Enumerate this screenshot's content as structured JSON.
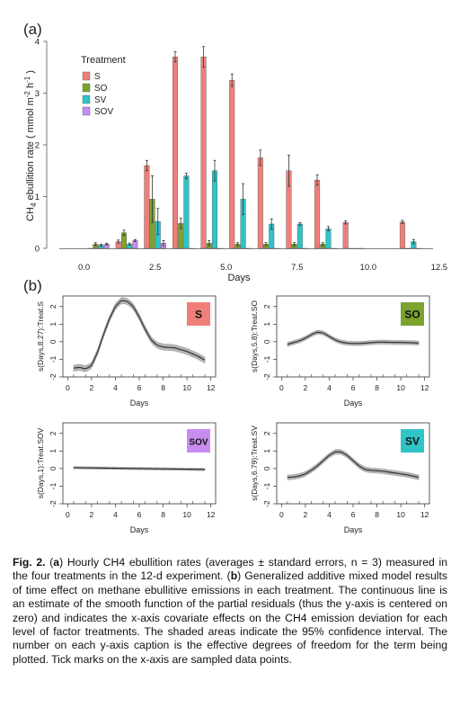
{
  "panel_a": {
    "label": "(a)",
    "legend_title": "Treatment",
    "ylabel": "CH4 ebullition rate ( mmol m-2 h-1 )",
    "xlabel": "Days",
    "xticks": [
      "0.0",
      "2.5",
      "5.0",
      "7.5",
      "10.0",
      "12.5"
    ],
    "yticks": [
      "0",
      "1",
      "2",
      "3",
      "4"
    ]
  },
  "panel_b": {
    "label": "(b)",
    "xlabel": "Days",
    "xticks": [
      "0",
      "2",
      "4",
      "6",
      "8",
      "10",
      "12"
    ],
    "yticks": [
      "-2",
      "-1",
      "0",
      "1",
      "2"
    ]
  },
  "colors": {
    "S": "#F07F7A",
    "SO": "#7BA32E",
    "SV": "#2EC4C8",
    "SOV": "#C88CF0",
    "band": "#b4b4b4",
    "line": "#333333"
  },
  "chart_data": [
    {
      "type": "bar",
      "title": "",
      "xlabel": "Days",
      "ylabel": "CH4 ebullition rate ( mmol m-2 h-1 )",
      "xlim": [
        -1,
        12.6
      ],
      "ylim": [
        0,
        4
      ],
      "x": [
        0.5,
        1.5,
        2.5,
        3.5,
        4.5,
        5.5,
        6.5,
        7.5,
        8.5,
        9.5,
        11.5
      ],
      "series": [
        {
          "name": "S",
          "values": [
            0.0,
            0.13,
            1.6,
            3.7,
            3.7,
            3.25,
            1.75,
            1.5,
            1.32,
            0.5,
            0.51
          ],
          "errors": [
            0,
            0.03,
            0.1,
            0.1,
            0.2,
            0.12,
            0.15,
            0.3,
            0.1,
            0.03,
            0.03
          ]
        },
        {
          "name": "SO",
          "values": [
            0.08,
            0.3,
            0.95,
            0.48,
            0.1,
            0.08,
            0.08,
            0.08,
            0.08,
            0.0,
            0.0
          ],
          "errors": [
            0.03,
            0.05,
            0.45,
            0.1,
            0.05,
            0.03,
            0.03,
            0.03,
            0.03,
            0,
            0
          ]
        },
        {
          "name": "SV",
          "values": [
            0.06,
            0.08,
            0.52,
            1.4,
            1.5,
            0.95,
            0.47,
            0.47,
            0.38,
            0.0,
            0.13
          ],
          "errors": [
            0.02,
            0.02,
            0.25,
            0.05,
            0.2,
            0.3,
            0.1,
            0.03,
            0.04,
            0,
            0.04
          ]
        },
        {
          "name": "SOV",
          "values": [
            0.08,
            0.15,
            0.1,
            0.0,
            0.0,
            0.0,
            0.0,
            0.0,
            0.0,
            0.0,
            0.0
          ],
          "errors": [
            0.02,
            0.02,
            0.05,
            0,
            0,
            0,
            0,
            0,
            0,
            0,
            0
          ]
        }
      ]
    },
    {
      "type": "line",
      "treatment": "S",
      "ylabel": "s(Days,8.27):Treat.S",
      "xlabel": "Days",
      "xlim": [
        -0.4,
        12.4
      ],
      "ylim": [
        -2,
        2.6
      ],
      "x": [
        0.5,
        1,
        1.5,
        2,
        2.5,
        3,
        3.5,
        4,
        4.5,
        5,
        5.5,
        6,
        6.5,
        7,
        7.5,
        8,
        8.5,
        9,
        9.5,
        10,
        10.5,
        11,
        11.5
      ],
      "values": [
        -1.5,
        -1.45,
        -1.55,
        -1.35,
        -0.6,
        0.4,
        1.3,
        2.0,
        2.35,
        2.3,
        2.0,
        1.4,
        0.7,
        0.1,
        -0.2,
        -0.3,
        -0.32,
        -0.35,
        -0.45,
        -0.55,
        -0.7,
        -0.85,
        -1.05
      ],
      "band": 0.18
    },
    {
      "type": "line",
      "treatment": "SO",
      "ylabel": "s(Days,5.8):Treat.SO",
      "xlabel": "Days",
      "xlim": [
        -0.4,
        12.4
      ],
      "ylim": [
        -2,
        2.6
      ],
      "x": [
        0.5,
        1,
        1.5,
        2,
        2.5,
        3,
        3.5,
        4,
        4.5,
        5,
        5.5,
        6,
        6.5,
        7,
        7.5,
        8,
        8.5,
        9,
        9.5,
        10,
        10.5,
        11,
        11.5
      ],
      "values": [
        -0.15,
        -0.05,
        0.05,
        0.2,
        0.4,
        0.55,
        0.5,
        0.3,
        0.1,
        -0.02,
        -0.08,
        -0.1,
        -0.1,
        -0.08,
        -0.05,
        -0.03,
        -0.02,
        -0.03,
        -0.04,
        -0.04,
        -0.05,
        -0.06,
        -0.08
      ],
      "band": 0.12
    },
    {
      "type": "line",
      "treatment": "SOV",
      "ylabel": "s(Days,1):Treat.SOV",
      "xlabel": "Days",
      "xlim": [
        -0.4,
        12.4
      ],
      "ylim": [
        -2,
        2.6
      ],
      "x": [
        0.5,
        11.5
      ],
      "values": [
        0.05,
        -0.05
      ],
      "band": 0.07
    },
    {
      "type": "line",
      "treatment": "SV",
      "ylabel": "s(Days,6.79):Treat.SV",
      "xlabel": "Days",
      "xlim": [
        -0.4,
        12.4
      ],
      "ylim": [
        -2,
        2.6
      ],
      "x": [
        0.5,
        1,
        1.5,
        2,
        2.5,
        3,
        3.5,
        4,
        4.5,
        5,
        5.5,
        6,
        6.5,
        7,
        7.5,
        8,
        8.5,
        9,
        9.5,
        10,
        10.5,
        11,
        11.5
      ],
      "values": [
        -0.5,
        -0.48,
        -0.42,
        -0.3,
        -0.1,
        0.15,
        0.45,
        0.75,
        0.95,
        0.95,
        0.75,
        0.45,
        0.15,
        -0.05,
        -0.1,
        -0.12,
        -0.15,
        -0.2,
        -0.25,
        -0.3,
        -0.35,
        -0.42,
        -0.5
      ],
      "band": 0.14
    }
  ],
  "caption": {
    "fig": "Fig. 2.",
    "a": "(a)",
    "b": "(b)",
    "text_a": " Hourly CH4 ebullition rates (averages ± standard errors, n = 3) measured in the four treatments in the 12-d experiment. ",
    "text_b": " Generalized additive mixed model results of time effect on methane ebullitive emissions in each treatment. The continuous line is an estimate of the smooth function of the partial residuals (thus the y-axis is centered on zero) and indicates the x-axis covariate effects on the CH4 emission deviation for each level of factor treatments. The shaded areas indicate the 95% confidence interval. The number on each y-axis caption is the effective degrees of freedom for the term being plotted. Tick marks on the x-axis are sampled data points."
  }
}
